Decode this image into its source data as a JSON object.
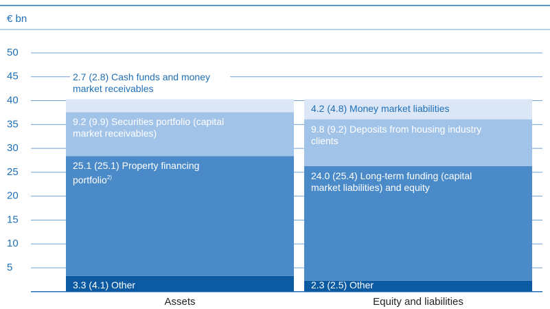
{
  "chart_data": {
    "type": "stacked_bar",
    "y_unit": "€ bn",
    "categories": [
      "Assets",
      "Equity and liabilities"
    ],
    "series": [
      {
        "color": "#0b5aa2",
        "label_color": "#ffffff",
        "values": [
          3.3,
          2.3
        ],
        "value_labels": [
          "3.3 (4.1) Other",
          "2.3 (2.5) Other"
        ]
      },
      {
        "color": "#4a8ac8",
        "label_color": "#ffffff",
        "values": [
          25.1,
          24.0
        ],
        "value_labels": [
          "25.1 (25.1) Property financing portfolio",
          "24.0 (25.4) Long-term funding (capital market liabilities) and equity"
        ],
        "label_notes": [
          "2)",
          null
        ]
      },
      {
        "color": "#a2c3e8",
        "label_color": "#ffffff",
        "values": [
          9.2,
          9.8
        ],
        "value_labels": [
          "9.2 (9.9) Securities portfolio (capital market receivables)",
          "9.8 (9.2) Deposits from housing industry clients"
        ]
      },
      {
        "color": "#dbe7f6",
        "label_color": "#1f6fb6",
        "values": [
          2.7,
          4.2
        ],
        "value_labels": [
          "2.7 (2.8) Cash funds and money market receivables",
          "4.2 (4.8) Money market liabilities"
        ]
      }
    ],
    "ylim": [
      0,
      50
    ],
    "yticks": [
      5,
      10,
      15,
      20,
      25,
      30,
      35,
      40,
      45,
      50
    ],
    "grid": true
  }
}
